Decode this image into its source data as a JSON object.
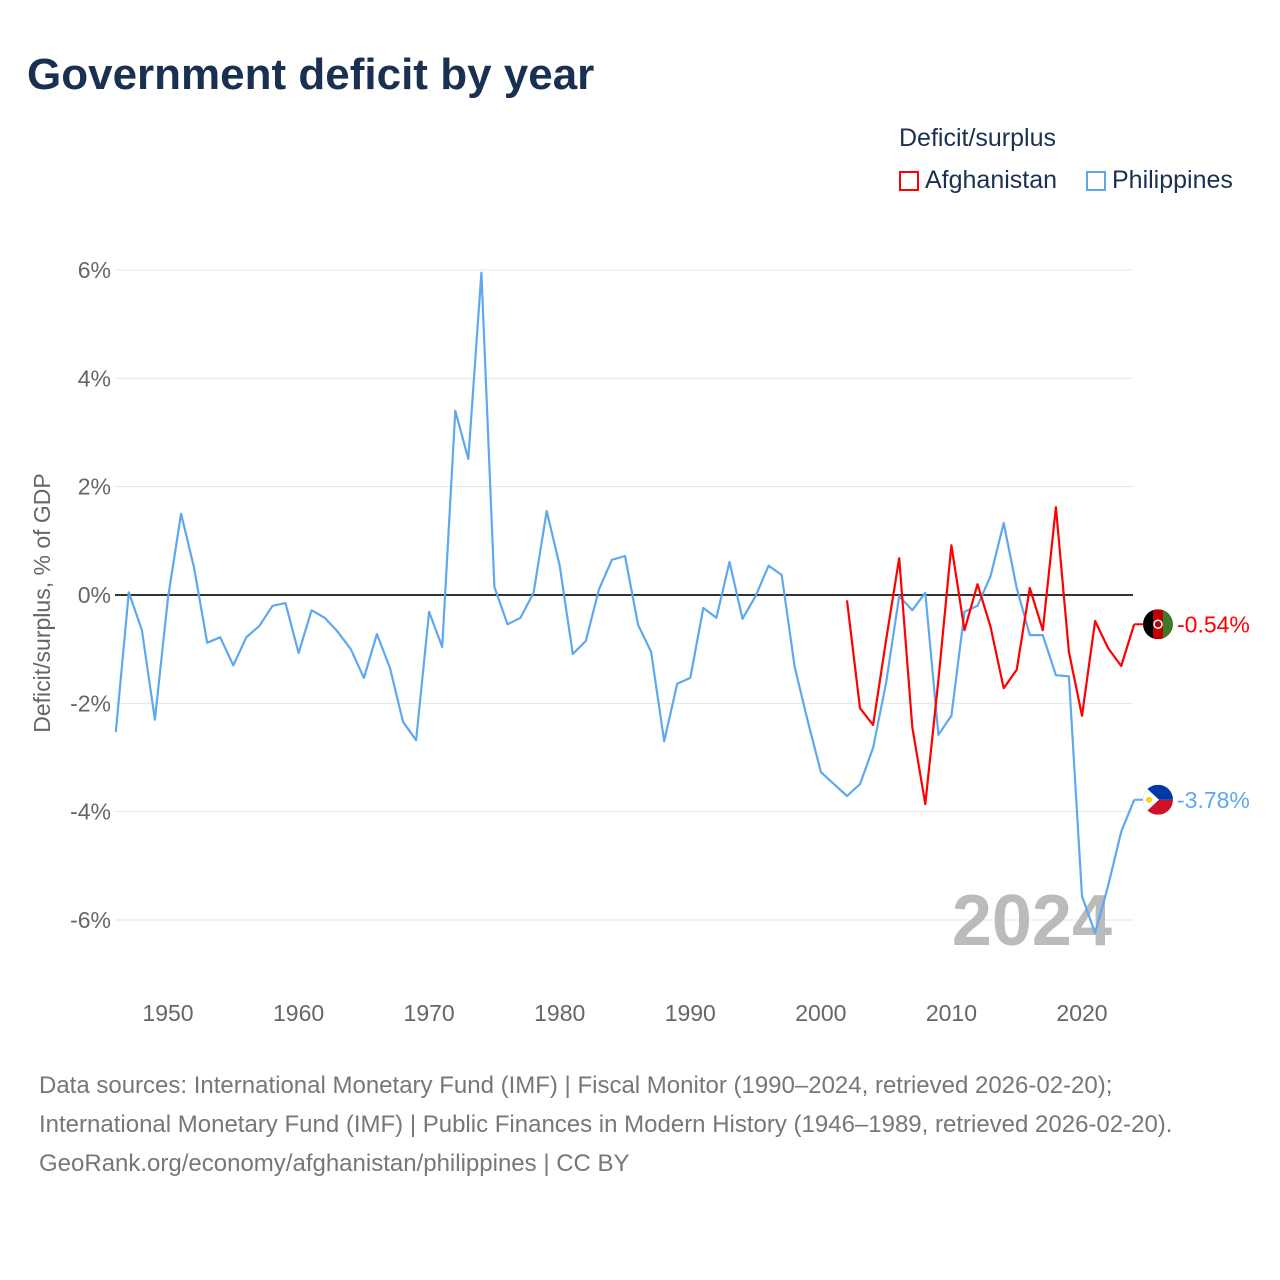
{
  "title": "Government deficit by year",
  "legend": {
    "title": "Deficit/surplus",
    "items": [
      {
        "label": "Afghanistan",
        "color": "#ff0000"
      },
      {
        "label": "Philippines",
        "color": "#5ea8ee"
      }
    ]
  },
  "sources": {
    "line1": "Data sources: International Monetary Fund (IMF) | Fiscal Monitor (1990–2024, retrieved 2026-02-20); International Monetary Fund (IMF) | Public Finances in Modern History (1946–1989, retrieved 2026-02-20).",
    "line2": "GeoRank.org/economy/afghanistan/philippines | CC BY"
  },
  "chart_data": {
    "type": "line",
    "ylabel": "Deficit/surplus, % of GDP",
    "xlim": [
      1946,
      2024
    ],
    "ylim": [
      -7,
      6.5
    ],
    "xticks": [
      1950,
      1960,
      1970,
      1980,
      1990,
      2000,
      2010,
      2020
    ],
    "yticks": [
      {
        "v": 6,
        "label": "6%"
      },
      {
        "v": 4,
        "label": "4%"
      },
      {
        "v": 2,
        "label": "2%"
      },
      {
        "v": 0,
        "label": "0%"
      },
      {
        "v": -2,
        "label": "-2%"
      },
      {
        "v": -4,
        "label": "-4%"
      },
      {
        "v": -6,
        "label": "-6%"
      }
    ],
    "year_label": "2024",
    "series": [
      {
        "name": "Philippines",
        "color": "#5ea8ee",
        "end_label": "-3.78%",
        "start": 1946,
        "values": [
          -2.53,
          0.05,
          -0.65,
          -2.3,
          -0.05,
          1.5,
          0.5,
          -0.88,
          -0.78,
          -1.3,
          -0.78,
          -0.57,
          -0.2,
          -0.15,
          -1.07,
          -0.28,
          -0.42,
          -0.68,
          -1.0,
          -1.53,
          -0.72,
          -1.35,
          -2.34,
          -2.68,
          -0.31,
          -0.96,
          3.4,
          2.51,
          5.95,
          0.15,
          -0.54,
          -0.42,
          0.04,
          1.55,
          0.54,
          -1.09,
          -0.85,
          0.1,
          0.65,
          0.72,
          -0.55,
          -1.05,
          -2.7,
          -1.64,
          -1.53,
          -0.24,
          -0.42,
          0.61,
          -0.44,
          -0.02,
          0.54,
          0.37,
          -1.33,
          -2.33,
          -3.27,
          -3.49,
          -3.71,
          -3.49,
          -2.82,
          -1.62,
          -0.02,
          -0.28,
          0.04,
          -2.58,
          -2.23,
          -0.31,
          -0.2,
          0.35,
          1.33,
          0.13,
          -0.74,
          -0.74,
          -1.48,
          -1.5,
          -5.56,
          -6.24,
          -5.37,
          -4.37,
          -3.78
        ]
      },
      {
        "name": "Afghanistan",
        "color": "#ff0000",
        "end_label": "-0.54%",
        "start": 2002,
        "values": [
          -0.1,
          -2.09,
          -2.4,
          -0.83,
          0.68,
          -2.44,
          -3.86,
          -1.57,
          0.92,
          -0.65,
          0.2,
          -0.59,
          -1.72,
          -1.38,
          0.13,
          -0.65,
          1.62,
          -1.05,
          -2.23,
          -0.48,
          -0.98,
          -1.31,
          -0.54
        ]
      }
    ]
  }
}
